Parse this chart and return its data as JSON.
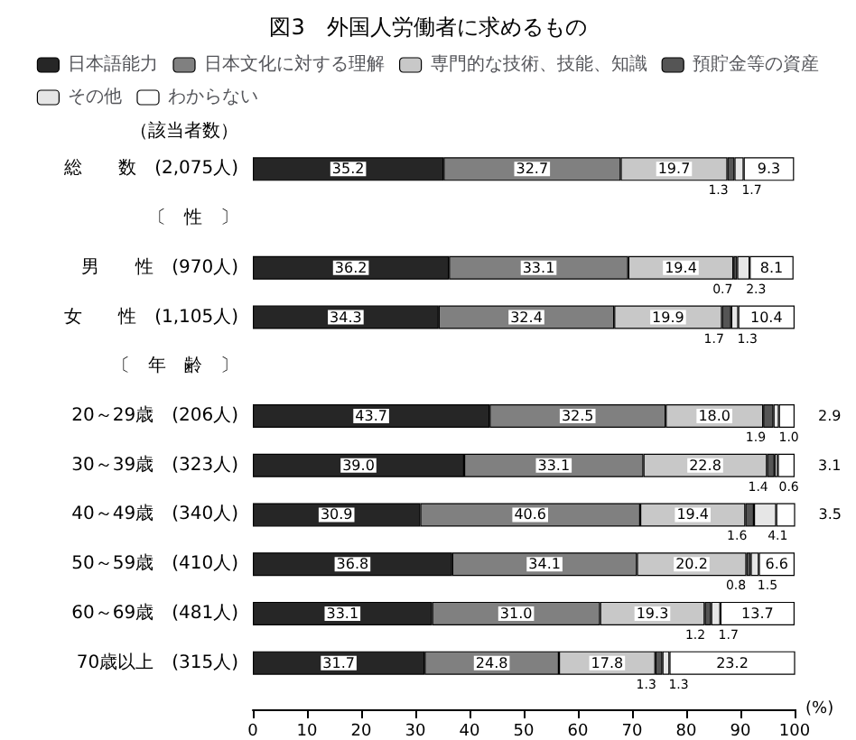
{
  "chart_data": {
    "type": "bar",
    "orientation": "horizontal",
    "stacked": true,
    "title": "図3　外国人労働者に求めるもの",
    "categories": [
      "総　　数　(2,075人)",
      "〔　性　〕",
      "男　　性　(970人)",
      "女　　性　(1,105人)",
      "〔　年　齢　〕",
      "20～29歳　(206人)",
      "30～39歳　(323人)",
      "40～49歳　(340人)",
      "50～59歳　(410人)",
      "60～69歳　(481人)",
      "70歳以上　(315人)"
    ],
    "series": [
      {
        "name": "日本語能力",
        "color": "#262626",
        "values": [
          35.2,
          null,
          36.2,
          34.3,
          null,
          43.7,
          39.0,
          30.9,
          36.8,
          33.1,
          31.7
        ],
        "value_labels": [
          "35.2",
          null,
          "36.2",
          "34.3",
          null,
          "43.7",
          "39.0",
          "30.9",
          "36.8",
          "33.1",
          "31.7"
        ]
      },
      {
        "name": "日本文化に対する理解",
        "color": "#808080",
        "values": [
          32.7,
          null,
          33.1,
          32.4,
          null,
          32.5,
          33.1,
          40.6,
          34.1,
          31.0,
          24.8
        ],
        "value_labels": [
          "32.7",
          null,
          "33.1",
          "32.4",
          null,
          "32.5",
          "33.1",
          "40.6",
          "34.1",
          "31.0",
          "24.8"
        ]
      },
      {
        "name": "専門的な技術、技能、知識",
        "color": "#c8c8c8",
        "values": [
          19.7,
          null,
          19.4,
          19.9,
          null,
          18.0,
          22.8,
          19.4,
          20.2,
          19.3,
          17.8
        ],
        "value_labels": [
          "19.7",
          null,
          "19.4",
          "19.9",
          null,
          "18.0",
          "22.8",
          "19.4",
          "20.2",
          "19.3",
          "17.8"
        ]
      },
      {
        "name": "預貯金等の資産",
        "color": "#555555",
        "values": [
          1.3,
          null,
          0.7,
          1.7,
          null,
          1.9,
          1.4,
          1.6,
          0.8,
          1.2,
          1.3
        ],
        "value_labels": [
          "1.3",
          null,
          "0.7",
          "1.7",
          null,
          "1.9",
          "1.4",
          "1.6",
          "0.8",
          "1.2",
          "1.3"
        ]
      },
      {
        "name": "その他",
        "color": "#e6e6e6",
        "values": [
          1.7,
          null,
          2.3,
          1.3,
          null,
          1.0,
          0.6,
          4.1,
          1.5,
          1.7,
          1.3
        ],
        "value_labels": [
          "1.7",
          null,
          "2.3",
          "1.3",
          null,
          "1.0",
          "0.6",
          "4.1",
          "1.5",
          "1.7",
          "1.3"
        ]
      },
      {
        "name": "わからない",
        "color": "#ffffff",
        "values": [
          9.3,
          null,
          8.1,
          10.4,
          null,
          2.9,
          3.1,
          3.5,
          6.6,
          13.7,
          23.2
        ],
        "value_labels": [
          "9.3",
          null,
          "8.1",
          "10.4",
          null,
          "2.9",
          "3.1",
          "3.5",
          "6.6",
          "13.7",
          "23.2"
        ]
      }
    ],
    "xlim": [
      0,
      100
    ],
    "xticks": [
      0,
      10,
      20,
      30,
      40,
      50,
      60,
      70,
      80,
      90,
      100
    ],
    "xlabel": "(%)",
    "annotations": [
      "（該当者数）"
    ],
    "legend": "top",
    "grid": false
  }
}
